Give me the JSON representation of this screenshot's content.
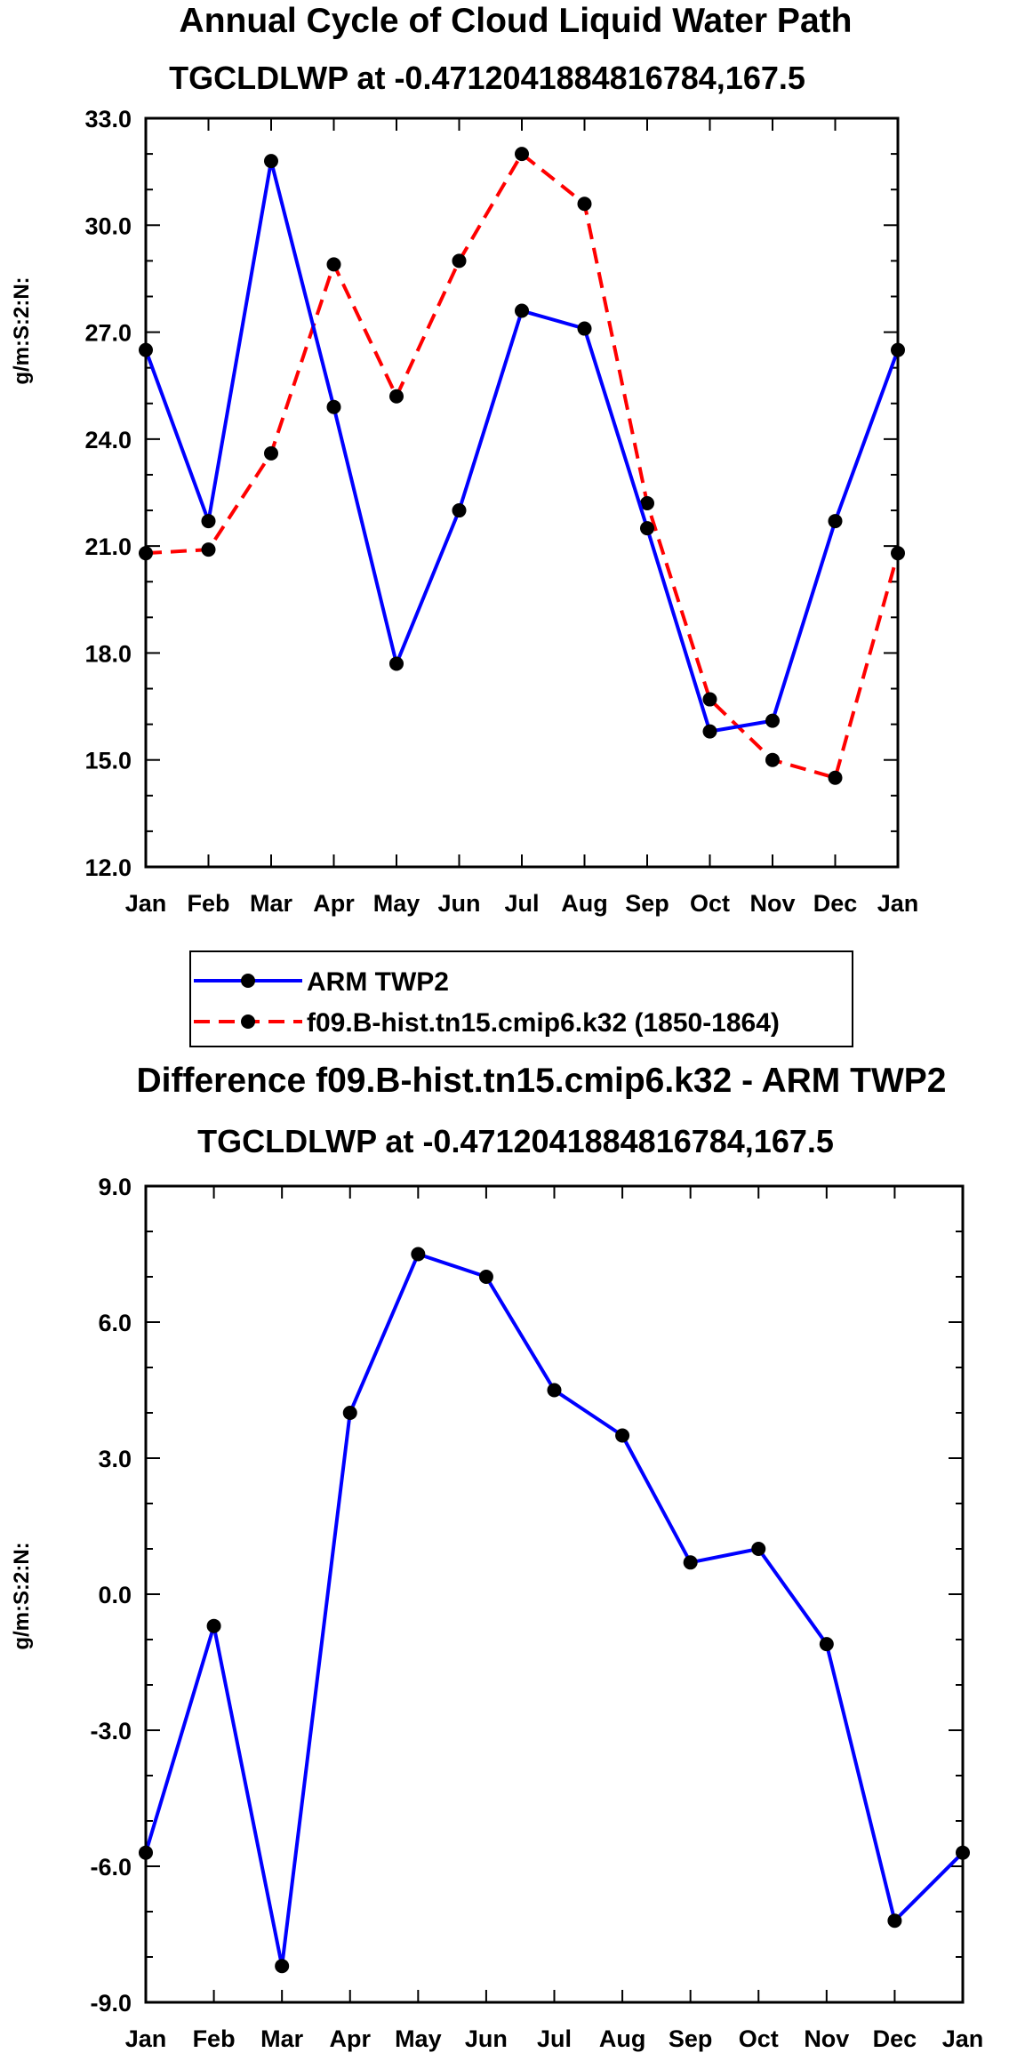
{
  "chart_data": [
    {
      "type": "line",
      "title": "Annual Cycle of Cloud Liquid Water Path",
      "subtitle": "TGCLDLWP at -0.4712041884816784,167.5",
      "xlabel": "",
      "ylabel": "g/m:S:2:N:",
      "categories": [
        "Jan",
        "Feb",
        "Mar",
        "Apr",
        "May",
        "Jun",
        "Jul",
        "Aug",
        "Sep",
        "Oct",
        "Nov",
        "Dec",
        "Jan"
      ],
      "ylim": [
        12.0,
        33.0
      ],
      "yticks": [
        "12.0",
        "15.0",
        "18.0",
        "21.0",
        "24.0",
        "27.0",
        "30.0",
        "33.0"
      ],
      "series": [
        {
          "name": "ARM TWP2",
          "color": "#0000ff",
          "style": "solid",
          "values": [
            26.5,
            21.7,
            31.8,
            24.9,
            17.7,
            22.0,
            27.6,
            27.1,
            21.5,
            15.8,
            16.1,
            21.7,
            26.5
          ]
        },
        {
          "name": "f09.B-hist.tn15.cmip6.k32 (1850-1864)",
          "color": "#ff0000",
          "style": "dashed",
          "values": [
            20.8,
            20.9,
            23.6,
            28.9,
            25.2,
            29.0,
            32.0,
            30.6,
            22.2,
            16.7,
            15.0,
            14.5,
            20.8
          ]
        }
      ]
    },
    {
      "type": "line",
      "title": "Difference f09.B-hist.tn15.cmip6.k32 - ARM TWP2",
      "subtitle": "TGCLDLWP at -0.4712041884816784,167.5",
      "xlabel": "",
      "ylabel": "g/m:S:2:N:",
      "categories": [
        "Jan",
        "Feb",
        "Mar",
        "Apr",
        "May",
        "Jun",
        "Jul",
        "Aug",
        "Sep",
        "Oct",
        "Nov",
        "Dec",
        "Jan"
      ],
      "ylim": [
        -9.0,
        9.0
      ],
      "yticks": [
        "-9.0",
        "-6.0",
        "-3.0",
        "0.0",
        "3.0",
        "6.0",
        "9.0"
      ],
      "series": [
        {
          "name": "Difference",
          "color": "#0000ff",
          "style": "solid",
          "values": [
            -5.7,
            -0.7,
            -8.2,
            4.0,
            7.5,
            7.0,
            4.5,
            3.5,
            0.7,
            1.0,
            -1.1,
            -7.2,
            -5.7
          ]
        }
      ]
    }
  ]
}
